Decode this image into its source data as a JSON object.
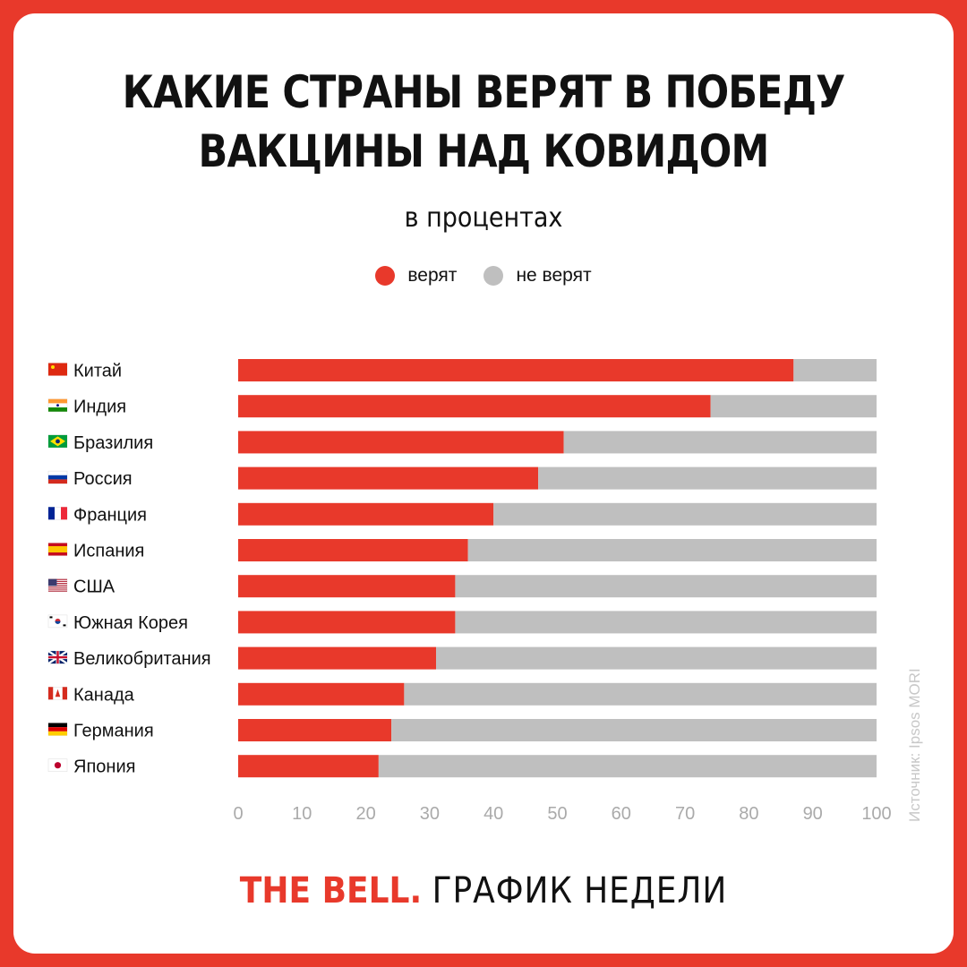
{
  "title_lines": [
    "КАКИЕ СТРАНЫ ВЕРЯТ В ПОБЕДУ",
    "ВАКЦИНЫ НАД КОВИДОМ"
  ],
  "subtitle": "в процентах",
  "legend": [
    {
      "label": "верят",
      "color": "#e8392b"
    },
    {
      "label": "не верят",
      "color": "#bfbfbf"
    }
  ],
  "source": "Источник: Ipsos MORI",
  "footer": {
    "brand": "THE BELL.",
    "text": "ГРАФИК НЕДЕЛИ"
  },
  "chart_data": {
    "type": "bar",
    "orientation": "horizontal",
    "stacked": true,
    "categories": [
      "Китай",
      "Индия",
      "Бразилия",
      "Россия",
      "Франция",
      "Испания",
      "США",
      "Южная Корея",
      "Великобритания",
      "Канада",
      "Германия",
      "Япония"
    ],
    "flags": [
      "cn",
      "in",
      "br",
      "ru",
      "fr",
      "es",
      "us",
      "kr",
      "gb",
      "ca",
      "de",
      "jp"
    ],
    "series": [
      {
        "name": "верят",
        "color": "#e8392b",
        "values": [
          87,
          74,
          51,
          47,
          40,
          36,
          34,
          34,
          31,
          26,
          24,
          22
        ]
      },
      {
        "name": "не верят",
        "color": "#bfbfbf",
        "values": [
          13,
          26,
          49,
          53,
          60,
          64,
          66,
          66,
          69,
          74,
          76,
          78
        ]
      }
    ],
    "xlim": [
      0,
      100
    ],
    "xticks": [
      0,
      10,
      20,
      30,
      40,
      50,
      60,
      70,
      80,
      90,
      100
    ],
    "grid": false,
    "legend_position": "top-center"
  }
}
